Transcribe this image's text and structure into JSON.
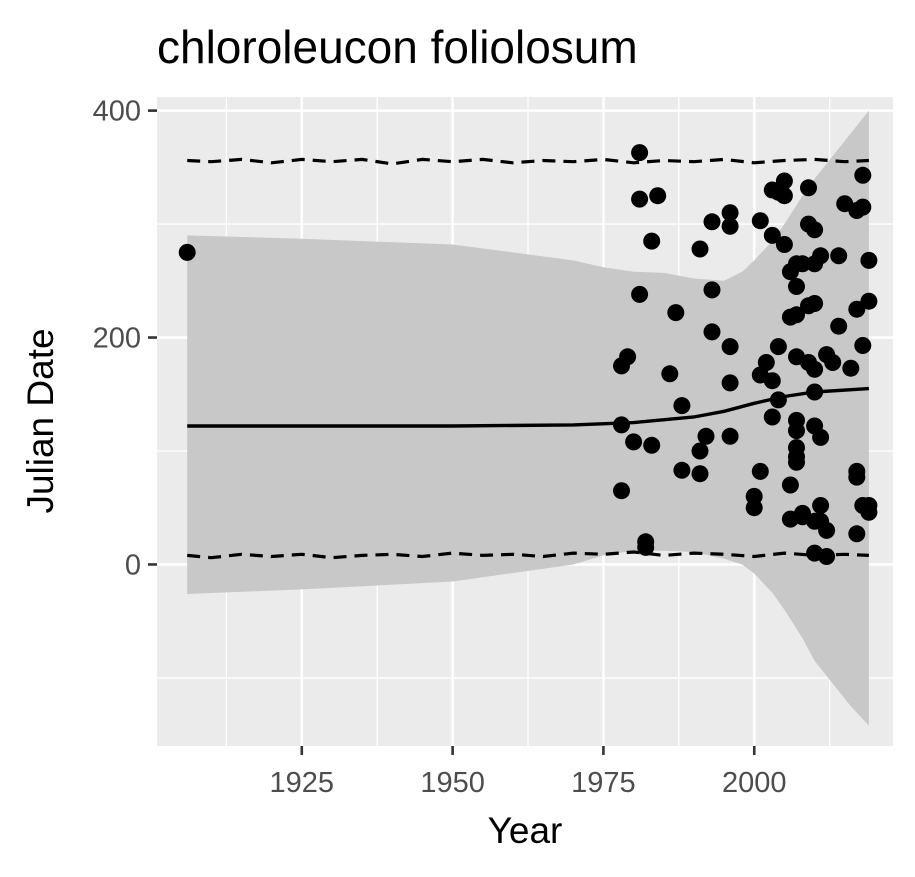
{
  "chart_data": {
    "type": "scatter",
    "title": "chloroleucon foliolosum",
    "xlabel": "Year",
    "ylabel": "Julian Date",
    "xlim": [
      1901,
      2023
    ],
    "ylim": [
      -160,
      412
    ],
    "x_ticks": [
      1925,
      1950,
      1975,
      2000
    ],
    "x_tick_labels": [
      "1925",
      "1950",
      "1975",
      "2000"
    ],
    "y_ticks": [
      0,
      200,
      400
    ],
    "y_tick_labels": [
      "0",
      "200",
      "400"
    ],
    "grid": true,
    "colors": {
      "panel": "#ebebeb",
      "grid": "#ffffff",
      "ribbon": "#c8c8c8",
      "points": "#000000",
      "fit_line": "#000000",
      "dashed_bounds": "#000000"
    },
    "fit_line": {
      "x": [
        1906,
        1925,
        1950,
        1970,
        1980,
        1990,
        1995,
        2000,
        2005,
        2010,
        2019
      ],
      "y": [
        122,
        122,
        122,
        123,
        125,
        130,
        135,
        142,
        148,
        152,
        155
      ]
    },
    "ribbon": {
      "x": [
        1906,
        1925,
        1950,
        1970,
        1975,
        1980,
        1985,
        1990,
        1995,
        1998,
        2000,
        2003,
        2005,
        2008,
        2010,
        2013,
        2016,
        2019
      ],
      "upper": [
        290,
        287,
        282,
        268,
        262,
        258,
        257,
        252,
        250,
        258,
        268,
        285,
        300,
        325,
        340,
        360,
        380,
        400
      ],
      "lower": [
        -26,
        -22,
        -15,
        0,
        8,
        12,
        12,
        11,
        5,
        0,
        -8,
        -25,
        -40,
        -65,
        -85,
        -105,
        -125,
        -142
      ]
    },
    "upper_bound": {
      "x": [
        1906,
        1910,
        1915,
        1920,
        1925,
        1930,
        1935,
        1940,
        1945,
        1950,
        1955,
        1960,
        1965,
        1970,
        1975,
        1980,
        1985,
        1990,
        1995,
        2000,
        2005,
        2010,
        2015,
        2019
      ],
      "y": [
        356,
        355,
        357,
        354,
        357,
        355,
        357,
        353,
        357,
        355,
        357,
        354,
        356,
        355,
        357,
        354,
        356,
        355,
        357,
        354,
        356,
        357,
        355,
        356
      ]
    },
    "lower_bound": {
      "x": [
        1906,
        1910,
        1915,
        1920,
        1925,
        1930,
        1935,
        1940,
        1945,
        1950,
        1955,
        1960,
        1965,
        1970,
        1975,
        1980,
        1985,
        1990,
        1995,
        2000,
        2005,
        2010,
        2015,
        2019
      ],
      "y": [
        8,
        6,
        9,
        7,
        9,
        6,
        8,
        9,
        7,
        10,
        8,
        9,
        7,
        10,
        9,
        11,
        8,
        10,
        9,
        7,
        10,
        8,
        9,
        8
      ]
    },
    "points": [
      [
        1906,
        275
      ],
      [
        1978,
        175
      ],
      [
        1978,
        65
      ],
      [
        1978,
        123
      ],
      [
        1979,
        183
      ],
      [
        1980,
        108
      ],
      [
        1981,
        363
      ],
      [
        1981,
        322
      ],
      [
        1981,
        238
      ],
      [
        1982,
        20
      ],
      [
        1982,
        15
      ],
      [
        1983,
        285
      ],
      [
        1983,
        105
      ],
      [
        1984,
        325
      ],
      [
        1986,
        168
      ],
      [
        1987,
        222
      ],
      [
        1988,
        140
      ],
      [
        1988,
        83
      ],
      [
        1991,
        278
      ],
      [
        1991,
        100
      ],
      [
        1991,
        80
      ],
      [
        1992,
        113
      ],
      [
        1993,
        302
      ],
      [
        1993,
        242
      ],
      [
        1993,
        205
      ],
      [
        1996,
        310
      ],
      [
        1996,
        298
      ],
      [
        1996,
        192
      ],
      [
        1996,
        160
      ],
      [
        1996,
        113
      ],
      [
        2000,
        60
      ],
      [
        2000,
        50
      ],
      [
        2001,
        303
      ],
      [
        2001,
        167
      ],
      [
        2001,
        82
      ],
      [
        2002,
        178
      ],
      [
        2003,
        330
      ],
      [
        2003,
        290
      ],
      [
        2003,
        130
      ],
      [
        2003,
        162
      ],
      [
        2004,
        328
      ],
      [
        2004,
        192
      ],
      [
        2004,
        145
      ],
      [
        2005,
        338
      ],
      [
        2005,
        325
      ],
      [
        2005,
        282
      ],
      [
        2006,
        258
      ],
      [
        2006,
        218
      ],
      [
        2006,
        70
      ],
      [
        2006,
        40
      ],
      [
        2007,
        265
      ],
      [
        2007,
        245
      ],
      [
        2007,
        220
      ],
      [
        2007,
        183
      ],
      [
        2007,
        127
      ],
      [
        2007,
        118
      ],
      [
        2007,
        103
      ],
      [
        2007,
        95
      ],
      [
        2007,
        90
      ],
      [
        2008,
        265
      ],
      [
        2008,
        45
      ],
      [
        2008,
        42
      ],
      [
        2009,
        332
      ],
      [
        2009,
        300
      ],
      [
        2009,
        228
      ],
      [
        2009,
        178
      ],
      [
        2010,
        295
      ],
      [
        2010,
        265
      ],
      [
        2010,
        230
      ],
      [
        2010,
        172
      ],
      [
        2010,
        152
      ],
      [
        2010,
        122
      ],
      [
        2010,
        38
      ],
      [
        2010,
        10
      ],
      [
        2011,
        272
      ],
      [
        2011,
        112
      ],
      [
        2011,
        52
      ],
      [
        2011,
        38
      ],
      [
        2012,
        185
      ],
      [
        2012,
        30
      ],
      [
        2012,
        7
      ],
      [
        2013,
        178
      ],
      [
        2014,
        272
      ],
      [
        2014,
        210
      ],
      [
        2015,
        318
      ],
      [
        2016,
        173
      ],
      [
        2017,
        312
      ],
      [
        2017,
        225
      ],
      [
        2017,
        82
      ],
      [
        2017,
        77
      ],
      [
        2017,
        27
      ],
      [
        2018,
        343
      ],
      [
        2018,
        315
      ],
      [
        2018,
        193
      ],
      [
        2018,
        52
      ],
      [
        2019,
        268
      ],
      [
        2019,
        232
      ],
      [
        2019,
        52
      ],
      [
        2019,
        46
      ]
    ]
  }
}
